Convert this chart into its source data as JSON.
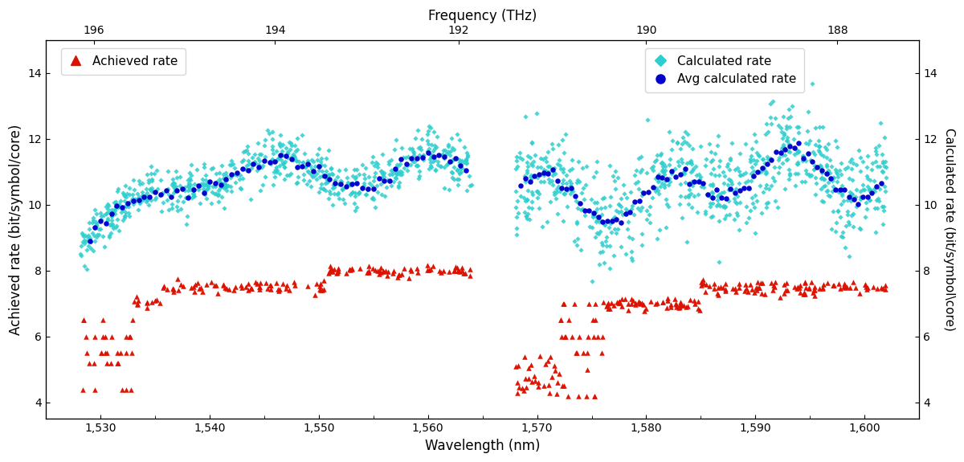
{
  "title_top": "Frequency (THz)",
  "xlabel": "Wavelength (nm)",
  "ylabel_left": "Achieved rate (bit/symbol/core)",
  "ylabel_right": "Calculated rate (bit/symbol\\core)",
  "xlim": [
    1525,
    1605
  ],
  "ylim": [
    3.5,
    15
  ],
  "yticks": [
    4,
    6,
    8,
    10,
    12,
    14
  ],
  "freq_ticks_nm": [
    1529.4,
    1546.0,
    1562.8,
    1580.0,
    1597.5
  ],
  "freq_ticks_thz": [
    196,
    194,
    192,
    190,
    188
  ],
  "band1_start": 1528,
  "band1_end": 1564,
  "band2_start": 1568,
  "band2_end": 1602,
  "calc_color": "#2ecece",
  "avg_color": "#0000cc",
  "achieved_color": "#dd1100",
  "background_color": "#ffffff",
  "legend_achieved": "Achieved rate",
  "legend_calc": "Calculated rate",
  "legend_avg": "Avg calculated rate",
  "seed": 42
}
